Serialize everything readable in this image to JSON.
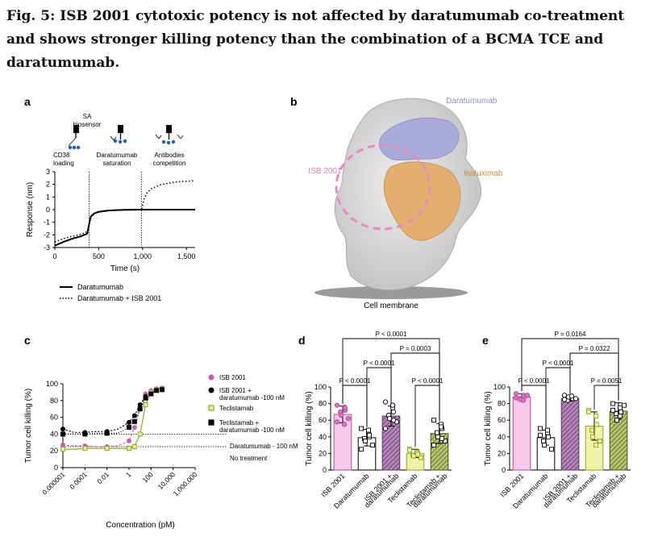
{
  "caption": "Fig. 5: ISB 2001 cytotoxic potency is not affected by daratumumab co-treatment and shows stronger killing potency than the combination of a BCMA TCE and daratumumab.",
  "panels": {
    "a": {
      "label": "a",
      "step_sa": "SA",
      "step_biosensor": "biosensor",
      "step1_line1": "CD38",
      "step1_line2": "loading",
      "step2_line1": "Daratumumab",
      "step2_line2": "saturation",
      "step3_line1": "Antibodies",
      "step3_line2": "competition",
      "legend_solid": "Daratumumab",
      "legend_dotted": "Daratumumab + ISB 2001"
    },
    "b": {
      "label": "b",
      "epitope_daratumumab": "Daratumumab",
      "epitope_isb": "ISB 2001",
      "epitope_isatuximab": "Isatuximab",
      "membrane": "Cell membrane",
      "colors": {
        "daratumumab": "#a9acd9",
        "isatuximab": "#e3b06f",
        "isb": "#e48cc0",
        "protein": "#d6d6d6"
      }
    },
    "c": {
      "label": "c",
      "ref_dara": "Daratumumab - 100 nM",
      "ref_none": "No treatment"
    },
    "d": {
      "label": "d"
    },
    "e": {
      "label": "e"
    }
  },
  "chart_data": [
    {
      "id": "a",
      "type": "line",
      "title": "",
      "xlabel": "Time (s)",
      "ylabel": "Response (nm)",
      "xlim": [
        0,
        1600
      ],
      "ylim": [
        -3,
        3
      ],
      "xticks": [
        0,
        500,
        1000,
        1500
      ],
      "xtick_labels": [
        "0",
        "500",
        "1,000",
        "1,500"
      ],
      "yticks": [
        -3,
        -2,
        -1,
        0,
        1,
        2,
        3
      ],
      "ytick_labels": [
        "-3",
        "-2",
        "-1",
        "0",
        "1",
        "2",
        "3"
      ],
      "vlines": [
        390,
        990
      ],
      "series": [
        {
          "name": "Daratumumab",
          "style": "solid",
          "x": [
            0,
            100,
            200,
            300,
            370,
            390,
            410,
            450,
            500,
            600,
            700,
            800,
            1000,
            1200,
            1400,
            1600
          ],
          "y": [
            -2.85,
            -2.55,
            -2.3,
            -2.1,
            -1.9,
            -1.2,
            -0.55,
            -0.3,
            -0.18,
            -0.08,
            -0.04,
            -0.02,
            0,
            0,
            0,
            0
          ]
        },
        {
          "name": "Daratumumab + ISB 2001",
          "style": "dotted",
          "x": [
            0,
            100,
            200,
            300,
            370,
            390,
            410,
            450,
            500,
            600,
            700,
            800,
            990,
            1000,
            1020,
            1050,
            1100,
            1200,
            1300,
            1400,
            1500,
            1600
          ],
          "y": [
            -2.55,
            -2.3,
            -2.1,
            -1.95,
            -1.75,
            -1.1,
            -0.5,
            -0.28,
            -0.15,
            -0.06,
            -0.03,
            -0.01,
            0,
            0.3,
            0.9,
            1.3,
            1.65,
            1.95,
            2.1,
            2.2,
            2.25,
            2.3
          ]
        }
      ]
    },
    {
      "id": "c",
      "type": "scatter",
      "xlabel": "Concentration (pM)",
      "ylabel": "Tumor cell killing (%)",
      "xscale": "log",
      "xlim_log10": [
        -6,
        6
      ],
      "ylim": [
        0,
        100
      ],
      "xticks_log10": [
        -6,
        -4,
        -2,
        0,
        2,
        4,
        6
      ],
      "xtick_labels": [
        "0.000001",
        "0.0001",
        "0.01",
        "1",
        "100",
        "10,000",
        "1,000,000"
      ],
      "yticks": [
        0,
        20,
        40,
        60,
        80,
        100
      ],
      "ytick_labels": [
        "0",
        "20",
        "40",
        "60",
        "80",
        "100"
      ],
      "ref_lines": [
        40,
        25
      ],
      "series": [
        {
          "name": "ISB 2001",
          "color": "#c85fb0",
          "fill": "#c85fb0",
          "marker": "circle",
          "dash": "3,2",
          "x_log10": [
            -6,
            -5,
            -4,
            -3,
            -2,
            -1,
            0,
            0.5,
            1,
            1.5,
            2,
            2.5,
            3
          ],
          "y": [
            27,
            26,
            26,
            25,
            25,
            26,
            32,
            48,
            70,
            88,
            92,
            94,
            95
          ]
        },
        {
          "name": "ISB 2001 + daratumumab -100 nM",
          "color": "#000000",
          "fill": "#000000",
          "marker": "circle",
          "dash": "2,2",
          "x_log10": [
            -6,
            -5,
            -4,
            -3,
            -2,
            -1,
            0,
            0.5,
            1,
            1.5,
            2,
            2.5,
            3
          ],
          "y": [
            46,
            42,
            42,
            43,
            43,
            46,
            54,
            62,
            75,
            85,
            90,
            93,
            94
          ]
        },
        {
          "name": "Teclistamab",
          "color": "#8eaa2a",
          "fill": "#eaf095",
          "marker": "square",
          "dash": "",
          "x_log10": [
            -6,
            -5,
            -4,
            -3,
            -2,
            -1,
            0,
            0.5,
            1,
            1.5,
            2,
            2.5,
            3
          ],
          "y": [
            22,
            22,
            23,
            23,
            23,
            23,
            23,
            25,
            40,
            75,
            90,
            93,
            94
          ]
        },
        {
          "name": "Teclistamab + daratumumab -100 nM",
          "color": "#000000",
          "fill": "#000000",
          "marker": "square",
          "dash": "1,2",
          "x_log10": [
            -6,
            -5,
            -4,
            -3,
            -2,
            -1,
            0,
            0.5,
            1,
            1.5,
            2,
            2.5,
            3
          ],
          "y": [
            40,
            40,
            40,
            41,
            41,
            41,
            48,
            55,
            70,
            83,
            88,
            92,
            93
          ]
        }
      ]
    },
    {
      "id": "d",
      "type": "bar",
      "ylabel": "Tumor cell killing (%)",
      "ylim": [
        0,
        100
      ],
      "yticks": [
        0,
        20,
        40,
        60,
        80,
        100
      ],
      "ytick_labels": [
        "0",
        "20",
        "40",
        "60",
        "80",
        "100"
      ],
      "categories": [
        "ISB 2001",
        "Daratumumab",
        "ISB 2001 + daratumumab",
        "Teclistamab",
        "Teclistamab + daratumumab"
      ],
      "values": [
        67,
        39,
        65,
        20,
        44
      ],
      "errors": [
        10,
        10,
        12,
        5,
        12
      ],
      "bar_fills": [
        "#f6c8ea",
        "#ffffff",
        "#b486b8",
        "#edf3a7",
        "#b9c36b"
      ],
      "bar_strokes": [
        "#b04d9c",
        "#000000",
        "#5b3363",
        "#8ea22a",
        "#4b5a1e"
      ],
      "hatched": [
        false,
        false,
        true,
        false,
        true
      ],
      "points": [
        [
          78,
          76,
          72,
          70,
          66,
          62,
          58,
          55,
          75
        ],
        [
          50,
          45,
          40,
          38,
          35,
          30,
          25,
          48,
          42
        ],
        [
          82,
          75,
          70,
          66,
          62,
          58,
          50,
          78,
          60
        ],
        [
          25,
          22,
          20,
          18,
          17,
          15,
          24,
          21,
          19
        ],
        [
          60,
          55,
          50,
          45,
          40,
          35,
          30,
          52,
          38
        ]
      ],
      "point_fills": [
        "#d874c2",
        "#ffffff",
        "#ffffff",
        "#f4f58c",
        "#ffffff"
      ],
      "point_strokes": [
        "#b04d9c",
        "#000000",
        "#000000",
        "#8ea22a",
        "#000000"
      ],
      "comparisons": [
        {
          "a": 0,
          "b": 4,
          "label": "P < 0.0001",
          "level": 3
        },
        {
          "a": 2,
          "b": 4,
          "label": "P = 0.0003",
          "level": 2
        },
        {
          "a": 1,
          "b": 2,
          "label": "P < 0.0001",
          "level": 1
        },
        {
          "a": 0,
          "b": 1,
          "label": "P < 0.0001",
          "level": 0
        },
        {
          "a": 3,
          "b": 4,
          "label": "P < 0.0001",
          "level": 0
        }
      ]
    },
    {
      "id": "e",
      "type": "bar",
      "ylabel": "Tumor cell killing (%)",
      "ylim": [
        0,
        100
      ],
      "yticks": [
        0,
        20,
        40,
        60,
        80,
        100
      ],
      "ytick_labels": [
        "0",
        "20",
        "40",
        "60",
        "80",
        "100"
      ],
      "categories": [
        "ISB 2001",
        "Daratumumab",
        "ISB 2001 + daratumumab",
        "Teclistamab",
        "Teclistamab + daratumumab"
      ],
      "values": [
        88,
        39,
        86,
        53,
        71
      ],
      "errors": [
        4,
        9,
        3,
        17,
        10
      ],
      "bar_fills": [
        "#f6c8ea",
        "#ffffff",
        "#b486b8",
        "#edf3a7",
        "#b9c36b"
      ],
      "bar_strokes": [
        "#b04d9c",
        "#000000",
        "#5b3363",
        "#8ea22a",
        "#4b5a1e"
      ],
      "hatched": [
        false,
        false,
        true,
        false,
        true
      ],
      "points": [
        [
          92,
          90,
          88,
          86,
          85,
          90,
          87,
          84
        ],
        [
          50,
          45,
          40,
          35,
          30,
          25,
          42,
          48
        ],
        [
          90,
          88,
          86,
          84,
          88,
          86,
          85,
          89
        ],
        [
          72,
          65,
          55,
          48,
          40,
          35,
          70,
          30
        ],
        [
          80,
          75,
          70,
          68,
          60,
          78,
          72,
          65
        ]
      ],
      "point_fills": [
        "#d874c2",
        "#ffffff",
        "#ffffff",
        "#f4f58c",
        "#ffffff"
      ],
      "point_strokes": [
        "#b04d9c",
        "#000000",
        "#000000",
        "#8ea22a",
        "#000000"
      ],
      "comparisons": [
        {
          "a": 0,
          "b": 4,
          "label": "P = 0.0164",
          "level": 3
        },
        {
          "a": 2,
          "b": 4,
          "label": "P = 0.0322",
          "level": 2
        },
        {
          "a": 1,
          "b": 2,
          "label": "P < 0.0001",
          "level": 1
        },
        {
          "a": 0,
          "b": 1,
          "label": "P < 0.0001",
          "level": 0
        },
        {
          "a": 3,
          "b": 4,
          "label": "P = 0.0051",
          "level": 0
        }
      ]
    }
  ]
}
